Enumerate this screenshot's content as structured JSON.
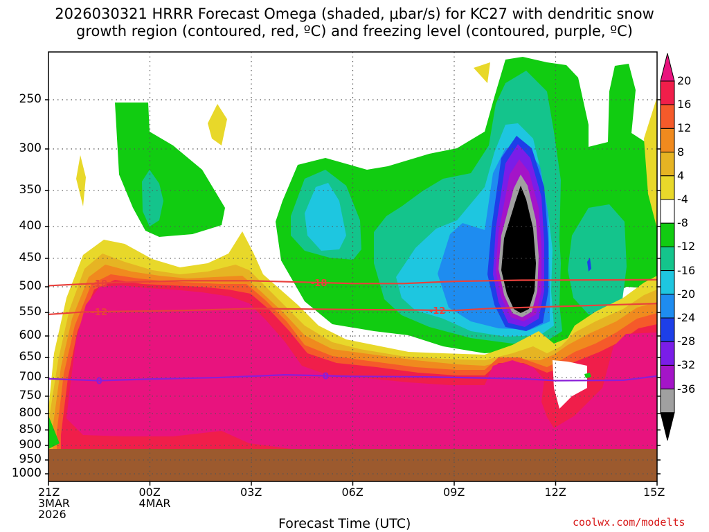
{
  "title_line1": "2026030321 HRRR Forecast Omega (shaded, μbar/s) for KC27 with dendritic snow",
  "title_line2": "growth region (contoured, red, ºC) and freezing level (contoured, purple, ºC)",
  "credit": "coolwx.com/modelts",
  "chart_data": {
    "type": "heatmap",
    "title": "2026030321 HRRR Forecast Omega (shaded, μbar/s) for KC27 with dendritic snow growth region (contoured, red, ºC) and freezing level (contoured, purple, ºC)",
    "xlabel": "Forecast Time (UTC)",
    "ylabel": "",
    "y_scale": "log-pressure",
    "ylim": [
      1000,
      200
    ],
    "y_ticks": [
      250,
      300,
      350,
      400,
      450,
      500,
      550,
      600,
      650,
      700,
      750,
      800,
      850,
      900,
      950,
      1000
    ],
    "x_hours": [
      0,
      3,
      6,
      9,
      12,
      15,
      18
    ],
    "x_tick_labels": [
      [
        "21Z",
        "3MAR",
        "2026"
      ],
      [
        "00Z",
        "4MAR"
      ],
      [
        "03Z"
      ],
      [
        "06Z"
      ],
      [
        "09Z"
      ],
      [
        "12Z"
      ],
      [
        "15Z"
      ]
    ],
    "grid": true,
    "ground_level_mb": 950,
    "colorbar_ticks": [
      "20",
      "16",
      "12",
      "8",
      "4",
      "-4",
      "-8",
      "-12",
      "-16",
      "-20",
      "-24",
      "-28",
      "-32",
      "-36"
    ],
    "colorbar_colors": [
      "#f01e4a",
      "#f55a2a",
      "#f08a1e",
      "#e6b423",
      "#e8d82a",
      "#ffffff",
      "#11cc11",
      "#14c48c",
      "#1ec6e0",
      "#1e8cf0",
      "#1d3fe8",
      "#7a1de8",
      "#a414c8",
      "#a0a0a0",
      "#000000"
    ],
    "colorbar_top_color": "#e8137e",
    "contours": [
      {
        "label": "-18",
        "color": "#e8413c",
        "points": [
          [
            0,
            498
          ],
          [
            2,
            492
          ],
          [
            4,
            489
          ],
          [
            6,
            489
          ],
          [
            9,
            494
          ],
          [
            10.5,
            494
          ],
          [
            12,
            490
          ],
          [
            14,
            488
          ],
          [
            18,
            487
          ]
        ]
      },
      {
        "label": "-12",
        "color": "#e8413c",
        "points": [
          [
            0,
            554
          ],
          [
            1,
            549
          ],
          [
            2,
            548
          ],
          [
            4,
            546
          ],
          [
            6,
            542
          ],
          [
            9,
            544
          ],
          [
            11,
            545
          ],
          [
            12,
            546
          ],
          [
            13,
            542
          ],
          [
            15,
            538
          ],
          [
            18,
            532
          ]
        ]
      },
      {
        "label": "0",
        "color": "#8a1ed8",
        "points": [
          [
            0,
            703
          ],
          [
            1.5,
            708
          ],
          [
            3,
            704
          ],
          [
            5,
            700
          ],
          [
            7,
            693
          ],
          [
            9,
            697
          ],
          [
            11,
            698
          ],
          [
            14,
            703
          ],
          [
            15,
            708
          ],
          [
            17,
            707
          ],
          [
            18,
            696
          ]
        ]
      }
    ]
  }
}
